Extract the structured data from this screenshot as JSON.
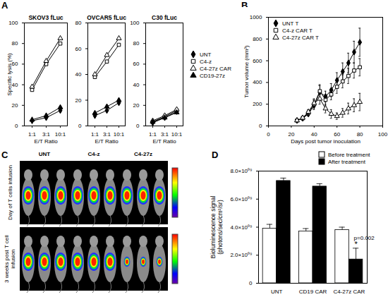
{
  "chart_data": [
    {
      "type": "line",
      "panel_label": "A",
      "title": "SKOV3 fLuc",
      "xlabel": "E/T Ratio",
      "ylabel": "Specific lysis (%)",
      "categories": [
        "1:1",
        "3:1",
        "10:1"
      ],
      "ylim": [
        0,
        100
      ],
      "yticks": [
        0,
        20,
        40,
        60,
        80,
        100
      ],
      "legend": "right",
      "series": [
        {
          "name": "UNT",
          "color": "#000000",
          "marker": "filled diamond",
          "values": [
            5,
            8,
            15
          ]
        },
        {
          "name": "C4-z",
          "color": "#000000",
          "marker": "open square",
          "values": [
            35,
            60,
            80
          ]
        },
        {
          "name": "C4-27z CAR",
          "color": "#000000",
          "marker": "open triangle",
          "values": [
            38,
            63,
            85
          ]
        },
        {
          "name": "CD19-27z",
          "color": "#000000",
          "marker": "filled triangle",
          "values": [
            6,
            10,
            18
          ]
        }
      ]
    },
    {
      "type": "line",
      "title": "OVCAR5 fLuc",
      "xlabel": "E/T Ratio",
      "categories": [
        "1:1",
        "3:1",
        "10:1"
      ],
      "ylim": [
        0,
        80
      ],
      "yticks": [
        0,
        20,
        40,
        60,
        80
      ],
      "series": [
        {
          "name": "UNT",
          "color": "#000000",
          "marker": "filled diamond",
          "values": [
            8,
            12,
            18
          ]
        },
        {
          "name": "C4-z",
          "color": "#000000",
          "marker": "open square",
          "values": [
            38,
            50,
            63
          ]
        },
        {
          "name": "C4-27z CAR",
          "color": "#000000",
          "marker": "open triangle",
          "values": [
            40,
            55,
            68
          ]
        },
        {
          "name": "CD19-27z",
          "color": "#000000",
          "marker": "filled triangle",
          "values": [
            10,
            15,
            20
          ]
        }
      ]
    },
    {
      "type": "line",
      "title": "C30 fLuc",
      "xlabel": "E/T Ratio",
      "categories": [
        "1:1",
        "3:1",
        "10:1"
      ],
      "ylim": [
        0,
        100
      ],
      "yticks": [
        0,
        20,
        40,
        60,
        80,
        100
      ],
      "series": [
        {
          "name": "UNT",
          "color": "#000000",
          "marker": "filled diamond",
          "values": [
            3,
            8,
            14
          ]
        },
        {
          "name": "C4-z",
          "color": "#000000",
          "marker": "open square",
          "values": [
            4,
            9,
            15
          ]
        },
        {
          "name": "C4-27z CAR",
          "color": "#000000",
          "marker": "open triangle",
          "values": [
            5,
            10,
            16
          ]
        },
        {
          "name": "CD19-27z",
          "color": "#000000",
          "marker": "filled triangle",
          "values": [
            4,
            8,
            13
          ]
        }
      ]
    },
    {
      "type": "line",
      "panel_label": "B",
      "xlabel": "Days post tumor inoculation",
      "ylabel": "Tumor volume (mm³)",
      "x": [
        25,
        30,
        35,
        40,
        45,
        50,
        55,
        60,
        65,
        70,
        75,
        80
      ],
      "xlim": [
        0,
        100
      ],
      "xticks": [
        0,
        20,
        40,
        60,
        80,
        100
      ],
      "ylim": [
        0,
        1000
      ],
      "yticks": [
        0,
        200,
        400,
        600,
        800,
        1000
      ],
      "legend": "top-left",
      "series": [
        {
          "name": "UNT T",
          "color": "#000000",
          "marker": "filled diamond",
          "values": [
            50,
            70,
            110,
            190,
            310,
            270,
            330,
            420,
            500,
            580,
            680,
            770
          ],
          "errors": [
            10,
            15,
            20,
            40,
            60,
            50,
            60,
            70,
            80,
            90,
            100,
            130
          ]
        },
        {
          "name": "C4-z CAR T",
          "color": "#000000",
          "marker": "open square",
          "values": [
            50,
            70,
            120,
            200,
            320,
            240,
            290,
            360,
            410,
            460,
            510,
            540
          ],
          "errors": [
            10,
            15,
            20,
            40,
            60,
            50,
            50,
            60,
            60,
            70,
            70,
            80
          ]
        },
        {
          "name": "C4-27z CAR T",
          "color": "#000000",
          "marker": "open triangle",
          "values": [
            50,
            75,
            130,
            210,
            250,
            160,
            110,
            90,
            120,
            160,
            190,
            220
          ],
          "errors": [
            10,
            15,
            20,
            40,
            50,
            40,
            40,
            30,
            40,
            50,
            60,
            80
          ]
        }
      ]
    },
    {
      "type": "image",
      "panel_label": "C",
      "columns": [
        "UNT",
        "C4-z",
        "C4-27z"
      ],
      "rows": [
        "Day of T cells infusion",
        "3 weeks post T cell infusion"
      ]
    },
    {
      "type": "bar",
      "panel_label": "D",
      "ylabel": "Bioluminescence signal\n(photons/sec/cm²/sr)",
      "categories": [
        "UNT",
        "CD19 CAR",
        "C4-27z CAR"
      ],
      "ylim": [
        0,
        8000000000
      ],
      "yticks": [
        0,
        {
          "value": 2000000000,
          "label": "2.0×10⁰⁹"
        },
        {
          "value": 4000000000,
          "label": "4.0×10⁰⁹"
        },
        {
          "value": 6000000000,
          "label": "6.0×10⁰⁹"
        },
        {
          "value": 8000000000,
          "label": "8.0×10⁰⁹"
        }
      ],
      "legend": "top-right",
      "series": [
        {
          "name": "Before treatment",
          "color": "#ffffff",
          "values": [
            3900000000,
            3700000000,
            3800000000
          ],
          "errors": [
            300000000,
            200000000,
            200000000
          ]
        },
        {
          "name": "After treatment",
          "color": "#000000",
          "values": [
            7300000000,
            6900000000,
            1700000000
          ],
          "errors": [
            200000000,
            200000000,
            800000000
          ]
        }
      ],
      "annotations": [
        {
          "text": "*",
          "category": "C4-27z CAR",
          "series": "After treatment"
        },
        {
          "text": "p=0.002",
          "category": "C4-27z CAR",
          "series": "After treatment"
        }
      ]
    }
  ]
}
